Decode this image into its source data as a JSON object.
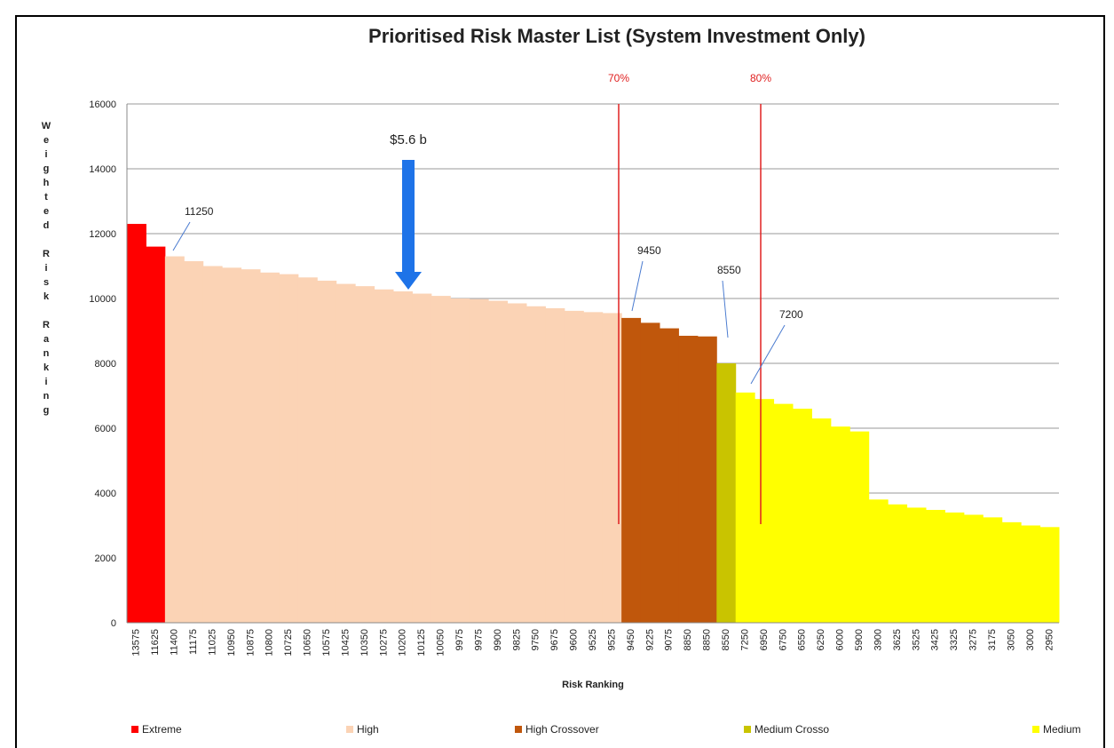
{
  "chart_data": {
    "type": "bar",
    "title": "Prioritised Risk Master List (System Investment Only)",
    "x_label": "Risk Ranking",
    "y_label": "Weighted Risk Ranking",
    "categories": [
      "13575",
      "11625",
      "11400",
      "11175",
      "11025",
      "10950",
      "10875",
      "10800",
      "10725",
      "10650",
      "10575",
      "10425",
      "10350",
      "10275",
      "10200",
      "10125",
      "10050",
      "9975",
      "9975",
      "9900",
      "9825",
      "9750",
      "9675",
      "9600",
      "9525",
      "9525",
      "9450",
      "9225",
      "9075",
      "8850",
      "8850",
      "8550",
      "7250",
      "6950",
      "6750",
      "6550",
      "6250",
      "6000",
      "5900",
      "3900",
      "3625",
      "3525",
      "3425",
      "3325",
      "3275",
      "3175",
      "3050",
      "3000",
      "2950"
    ],
    "series": [
      {
        "name": "Extreme",
        "color": "#ff0000",
        "values": [
          12300,
          11600,
          null,
          null,
          null,
          null,
          null,
          null,
          null,
          null,
          null,
          null,
          null,
          null,
          null,
          null,
          null,
          null,
          null,
          null,
          null,
          null,
          null,
          null,
          null,
          null,
          null,
          null,
          null,
          null,
          null,
          null,
          null,
          null,
          null,
          null,
          null,
          null,
          null,
          null,
          null,
          null,
          null,
          null,
          null,
          null,
          null,
          null,
          null
        ]
      },
      {
        "name": "High",
        "color": "#fbd3b5",
        "values": [
          null,
          null,
          11300,
          11150,
          11000,
          10950,
          10900,
          10800,
          10750,
          10650,
          10550,
          10450,
          10380,
          10280,
          10220,
          10150,
          10080,
          10000,
          9980,
          9930,
          9850,
          9760,
          9700,
          9620,
          9580,
          9550,
          null,
          null,
          null,
          null,
          null,
          null,
          null,
          null,
          null,
          null,
          null,
          null,
          null,
          null,
          null,
          null,
          null,
          null,
          null,
          null,
          null,
          null,
          null
        ]
      },
      {
        "name": "High Crossover",
        "color": "#c0570c",
        "values": [
          null,
          null,
          null,
          null,
          null,
          null,
          null,
          null,
          null,
          null,
          null,
          null,
          null,
          null,
          null,
          null,
          null,
          null,
          null,
          null,
          null,
          null,
          null,
          null,
          null,
          null,
          9400,
          9250,
          9080,
          8850,
          8830,
          null,
          null,
          null,
          null,
          null,
          null,
          null,
          null,
          null,
          null,
          null,
          null,
          null,
          null,
          null,
          null,
          null,
          null
        ]
      },
      {
        "name": "Medium Crosso",
        "color": "#c9c400",
        "values": [
          null,
          null,
          null,
          null,
          null,
          null,
          null,
          null,
          null,
          null,
          null,
          null,
          null,
          null,
          null,
          null,
          null,
          null,
          null,
          null,
          null,
          null,
          null,
          null,
          null,
          null,
          null,
          null,
          null,
          null,
          null,
          8000,
          null,
          null,
          null,
          null,
          null,
          null,
          null,
          null,
          null,
          null,
          null,
          null,
          null,
          null,
          null,
          null,
          null
        ]
      },
      {
        "name": "Medium",
        "color": "#ffff00",
        "values": [
          null,
          null,
          null,
          null,
          null,
          null,
          null,
          null,
          null,
          null,
          null,
          null,
          null,
          null,
          null,
          null,
          null,
          null,
          null,
          null,
          null,
          null,
          null,
          null,
          null,
          null,
          null,
          null,
          null,
          null,
          null,
          null,
          7100,
          6900,
          6750,
          6600,
          6300,
          6050,
          5900,
          3800,
          3650,
          3550,
          3480,
          3400,
          3330,
          3250,
          3100,
          3000,
          2950
        ]
      }
    ],
    "ylim": [
      0,
      16000
    ],
    "yticks": [
      0,
      2000,
      4000,
      6000,
      8000,
      10000,
      12000,
      14000,
      16000
    ],
    "grid": true,
    "legend": "bottom",
    "annotations": [
      "11250",
      "9450",
      "8550",
      "7200",
      "$5.6 b",
      "70%",
      "80%"
    ]
  }
}
